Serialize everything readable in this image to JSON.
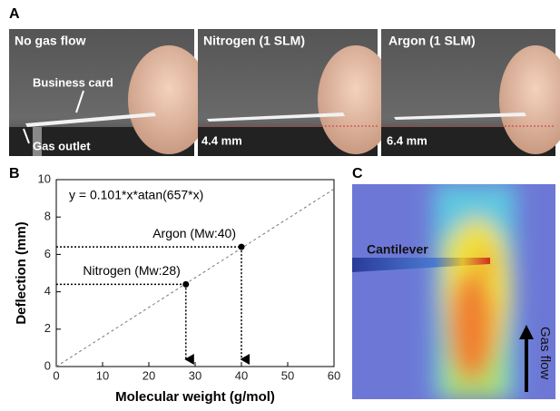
{
  "panel_a": {
    "label": "A",
    "photos": [
      {
        "caption": "No gas flow",
        "annotations": [
          "Business card",
          "Gas outlet"
        ]
      },
      {
        "caption": "Nitrogen (1 SLM)",
        "annotations": [
          "4.4 mm"
        ]
      },
      {
        "caption": "Argon (1 SLM)",
        "annotations": [
          "6.4 mm"
        ]
      }
    ]
  },
  "panel_b": {
    "label": "B"
  },
  "panel_c": {
    "label": "C",
    "annotations": [
      "Cantilever",
      "Gas flow"
    ]
  },
  "chart_data": {
    "type": "scatter",
    "equation": "y = 0.101*x*atan(657*x)",
    "x_label": "Molecular weight (g/mol)",
    "y_label": "Deflection (mm)",
    "xlim": [
      0,
      60
    ],
    "ylim": [
      0,
      10
    ],
    "xticks": [
      0,
      10,
      20,
      30,
      40,
      50,
      60
    ],
    "yticks": [
      0,
      2,
      4,
      6,
      8,
      10
    ],
    "fit": {
      "x": [
        0,
        60
      ],
      "values": [
        0,
        9.5
      ],
      "color": "#777777"
    },
    "points": {
      "x": [
        28,
        40
      ],
      "values": [
        4.4,
        6.4
      ],
      "labels": [
        "Nitrogen (Mw:28)",
        "Argon (Mw:40)"
      ],
      "color": "#000000"
    }
  }
}
